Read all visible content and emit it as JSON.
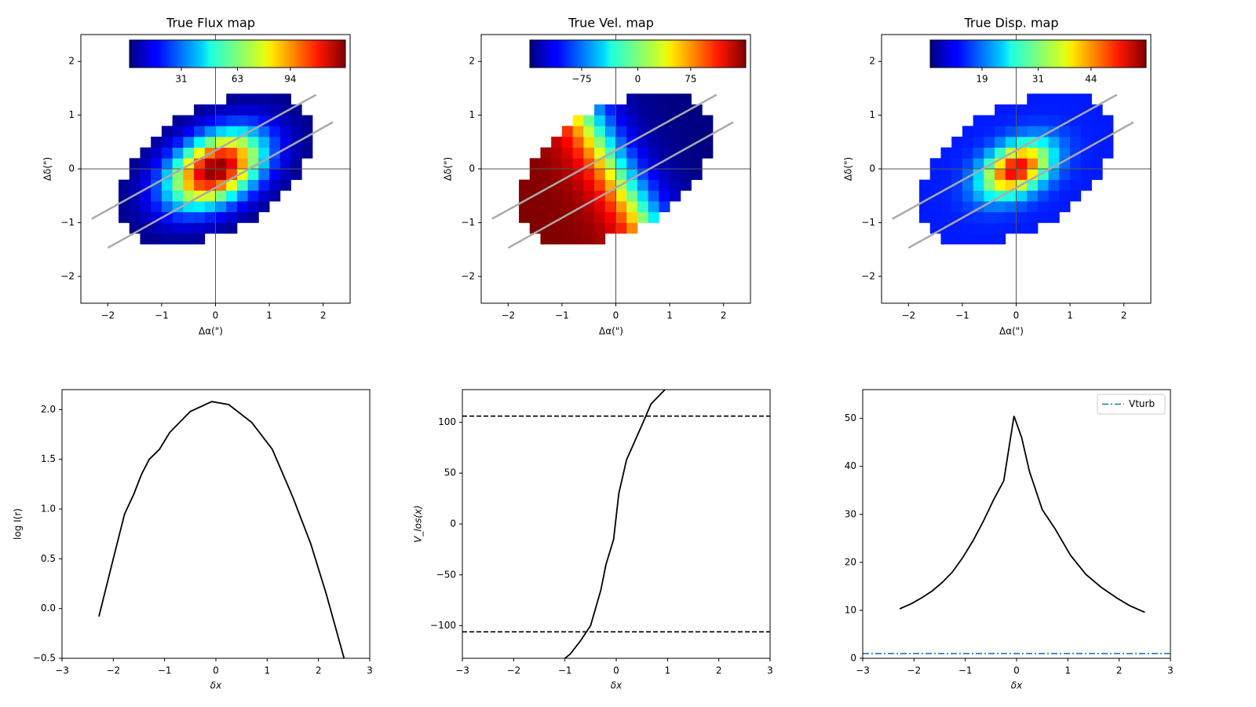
{
  "chart_data": [
    {
      "type": "heatmap",
      "title": "True Flux map",
      "xlabel": "Δα(\")",
      "ylabel": "Δδ(\")",
      "xlim": [
        -2.5,
        2.5
      ],
      "ylim": [
        -2.5,
        2.5
      ],
      "xticks": [
        "−2",
        "−1",
        "0",
        "1",
        "2"
      ],
      "yticks": [
        "−2",
        "−1",
        "0",
        "1",
        "2"
      ],
      "colormap": "jet",
      "colorbar_ticks": [
        "31",
        "63",
        "94"
      ],
      "field": "flux"
    },
    {
      "type": "heatmap",
      "title": "True Vel. map",
      "xlabel": "Δα(\")",
      "ylabel": "Δδ(\")",
      "xlim": [
        -2.5,
        2.5
      ],
      "ylim": [
        -2.5,
        2.5
      ],
      "xticks": [
        "−2",
        "−1",
        "0",
        "1",
        "2"
      ],
      "yticks": [
        "−2",
        "−1",
        "0",
        "1",
        "2"
      ],
      "colormap": "jet",
      "colorbar_ticks": [
        "−75",
        "0",
        "75"
      ],
      "field": "velocity"
    },
    {
      "type": "heatmap",
      "title": "True Disp. map",
      "xlabel": "Δα(\")",
      "ylabel": "Δδ(\")",
      "xlim": [
        -2.5,
        2.5
      ],
      "ylim": [
        -2.5,
        2.5
      ],
      "xticks": [
        "−2",
        "−1",
        "0",
        "1",
        "2"
      ],
      "yticks": [
        "−2",
        "−1",
        "0",
        "1",
        "2"
      ],
      "colormap": "jet",
      "colorbar_ticks": [
        "19",
        "31",
        "44"
      ],
      "field": "dispersion"
    },
    {
      "type": "line",
      "title": "",
      "xlabel": "δx",
      "ylabel": "log I(r)",
      "xlim": [
        -3,
        3
      ],
      "ylim": [
        -0.5,
        2.2
      ],
      "xticks": [
        -3,
        -2,
        -1,
        0,
        1,
        2,
        3
      ],
      "xtick_labels": [
        "−3",
        "−2",
        "−1",
        "0",
        "1",
        "2",
        "3"
      ],
      "yticks": [
        -0.5,
        0.0,
        0.5,
        1.0,
        1.5,
        2.0
      ],
      "ytick_labels": [
        "−0.5",
        "0.0",
        "0.5",
        "1.0",
        "1.5",
        "2.0"
      ],
      "series": [
        {
          "color": "#000000",
          "x": [
            -2.28,
            -2.0,
            -1.78,
            -1.6,
            -1.45,
            -1.3,
            -1.1,
            -0.9,
            -0.5,
            -0.08,
            0.25,
            0.7,
            1.1,
            1.5,
            1.85,
            2.15,
            2.5
          ],
          "y": [
            -0.08,
            0.5,
            0.95,
            1.15,
            1.35,
            1.5,
            1.6,
            1.77,
            1.98,
            2.08,
            2.05,
            1.87,
            1.6,
            1.12,
            0.65,
            0.15,
            -0.5
          ]
        }
      ]
    },
    {
      "type": "line",
      "title": "",
      "xlabel": "δx",
      "ylabel": "V_los(x)",
      "xlim": [
        -3,
        3
      ],
      "ylim": [
        -132,
        132
      ],
      "xticks": [
        -3,
        -2,
        -1,
        0,
        1,
        2,
        3
      ],
      "xtick_labels": [
        "−3",
        "−2",
        "−1",
        "0",
        "1",
        "2",
        "3"
      ],
      "yticks": [
        -100,
        -50,
        0,
        50,
        100
      ],
      "ytick_labels": [
        "−100",
        "−50",
        "0",
        "50",
        "100"
      ],
      "hlines": [
        {
          "y": 106,
          "style": "dashed",
          "color": "#000000"
        },
        {
          "y": -106,
          "style": "dashed",
          "color": "#000000"
        }
      ],
      "series": [
        {
          "color": "#000000",
          "x": [
            -1.0,
            -0.9,
            -0.7,
            -0.5,
            -0.3,
            -0.2,
            -0.05,
            0.05,
            0.2,
            0.35,
            0.5,
            0.68,
            0.95,
            1.1
          ],
          "y": [
            -132,
            -128,
            -115,
            -100,
            -65,
            -40,
            -15,
            30,
            63,
            80,
            97,
            118,
            132,
            140
          ]
        }
      ]
    },
    {
      "type": "line",
      "title": "",
      "xlabel": "δx",
      "ylabel": "",
      "xlim": [
        -3,
        3
      ],
      "ylim": [
        0,
        56
      ],
      "xticks": [
        -3,
        -2,
        -1,
        0,
        1,
        2,
        3
      ],
      "xtick_labels": [
        "−3",
        "−2",
        "−1",
        "0",
        "1",
        "2",
        "3"
      ],
      "yticks": [
        0,
        10,
        20,
        30,
        40,
        50
      ],
      "ytick_labels": [
        "0",
        "10",
        "20",
        "30",
        "40",
        "50"
      ],
      "legend": {
        "position": "top-right",
        "entries": [
          "Vturb"
        ]
      },
      "hlines": [
        {
          "y": 1,
          "style": "dashdot",
          "color": "#1f77b4",
          "name": "Vturb"
        }
      ],
      "series": [
        {
          "color": "#000000",
          "x": [
            -2.28,
            -2.05,
            -1.85,
            -1.65,
            -1.45,
            -1.25,
            -1.05,
            -0.85,
            -0.65,
            -0.45,
            -0.25,
            -0.05,
            0.1,
            0.25,
            0.5,
            0.75,
            1.05,
            1.35,
            1.65,
            1.95,
            2.2,
            2.5
          ],
          "y": [
            10.3,
            11.4,
            12.6,
            14.0,
            15.8,
            18.0,
            21.0,
            24.5,
            28.5,
            33.0,
            37.0,
            50.5,
            46.0,
            39.0,
            31.0,
            27.0,
            21.5,
            17.5,
            14.8,
            12.6,
            11.0,
            9.6
          ]
        }
      ]
    }
  ]
}
